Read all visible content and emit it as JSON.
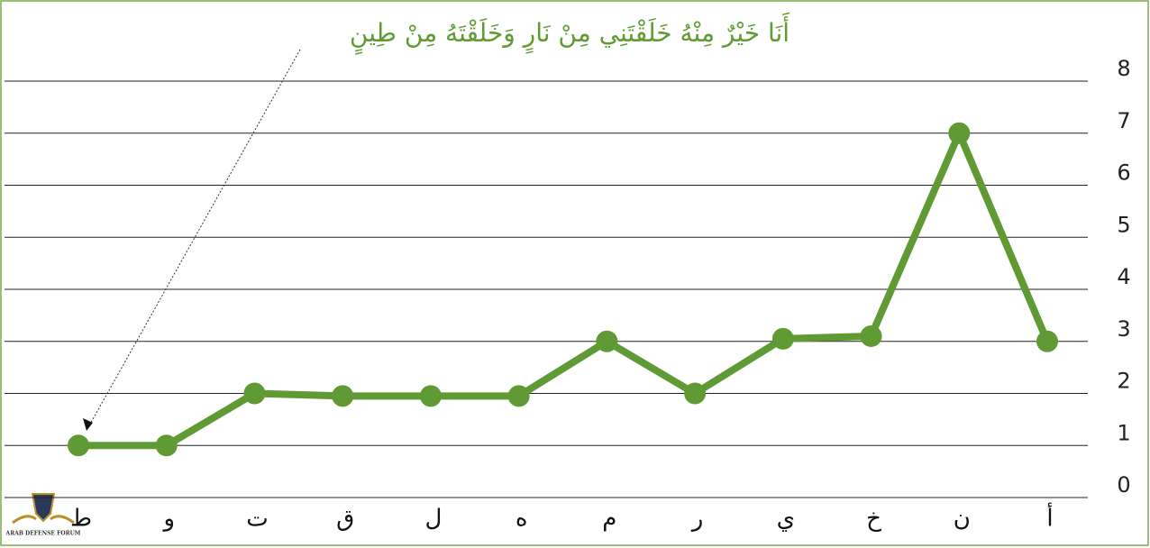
{
  "chart_data": {
    "type": "line",
    "title": "أَنَا خَيْرٌ مِنْهُ خَلَقْتَنِي مِنْ نَارٍ وَخَلَقْتَهُ مِنْ طِينٍ",
    "categories": [
      "ط",
      "و",
      "ت",
      "ق",
      "ل",
      "ه",
      "م",
      "ر",
      "ي",
      "خ",
      "ن",
      "أ"
    ],
    "series": [
      {
        "color": "#5f9a34",
        "values": [
          1,
          1,
          2,
          1.95,
          1.95,
          1.95,
          3,
          2,
          3.05,
          3.1,
          7,
          3
        ]
      }
    ],
    "ylim": [
      0,
      8
    ],
    "yticks": [
      0,
      1,
      2,
      3,
      4,
      5,
      6,
      7,
      8
    ],
    "grid": true,
    "watermark": "ARAB DEFENSE FORUM"
  }
}
